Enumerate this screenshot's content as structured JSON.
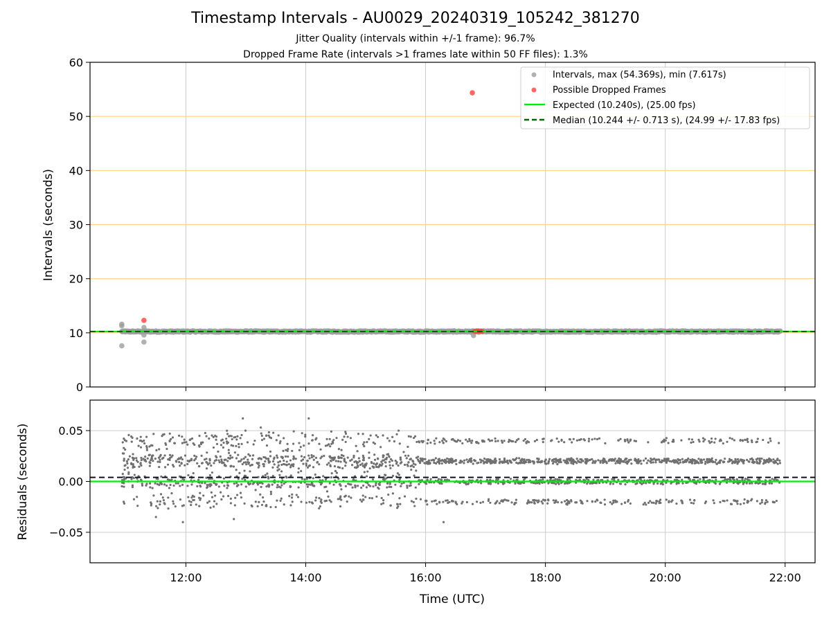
{
  "title": "Timestamp Intervals - AU0029_20240319_105242_381270",
  "subtitle_lines": [
    "Jitter Quality (intervals within +/-1 frame): 96.7%",
    "Dropped Frame Rate (intervals >1 frames late within 50 FF files): 1.3%"
  ],
  "colors": {
    "intervals": "#9e9e9e",
    "dropped": "#ff4040",
    "expected": "#00ee00",
    "median": "#006400",
    "residuals": "#707070",
    "hgrid_top": "#ffd27f",
    "grid": "#cccccc"
  },
  "chart_data": [
    {
      "type": "scatter",
      "panel": "top",
      "xlabel": "",
      "ylabel": "Intervals (seconds)",
      "xlim_hours": [
        10.4,
        22.5
      ],
      "ylim": [
        0,
        60
      ],
      "yticks": [
        0,
        10,
        20,
        30,
        40,
        50,
        60
      ],
      "xticks": [
        "12:00",
        "14:00",
        "16:00",
        "18:00",
        "20:00",
        "22:00"
      ],
      "xtick_hours": [
        12,
        14,
        16,
        18,
        20,
        22
      ],
      "grid": true,
      "legend_position": "top-right",
      "legend": [
        "Intervals, max (54.369s), min (7.617s)",
        "Possible Dropped Frames",
        "Expected (10.240s), (25.00 fps)",
        "Median (10.244 +/- 0.713 s), (24.99 +/- 17.83 fps)"
      ],
      "intervals_band": {
        "x_start_hour": 10.93,
        "x_end_hour": 21.92,
        "value": 10.24
      },
      "interval_outliers": [
        {
          "x_hour": 10.93,
          "y": 11.6
        },
        {
          "x_hour": 10.93,
          "y": 11.3
        },
        {
          "x_hour": 10.93,
          "y": 7.6
        },
        {
          "x_hour": 11.3,
          "y": 11.0
        },
        {
          "x_hour": 11.3,
          "y": 9.6
        },
        {
          "x_hour": 11.3,
          "y": 8.3
        },
        {
          "x_hour": 16.8,
          "y": 9.5
        }
      ],
      "dropped_frames": [
        {
          "x_hour": 11.3,
          "y": 12.3
        },
        {
          "x_hour": 16.78,
          "y": 54.369
        },
        {
          "x_hour": 16.82,
          "y": 10.3
        },
        {
          "x_hour": 16.85,
          "y": 10.3
        },
        {
          "x_hour": 16.88,
          "y": 10.3
        },
        {
          "x_hour": 16.91,
          "y": 10.3
        },
        {
          "x_hour": 16.94,
          "y": 10.3
        }
      ],
      "expected_value": 10.24,
      "median_value": 10.244
    },
    {
      "type": "scatter",
      "panel": "bottom",
      "xlabel": "Time (UTC)",
      "ylabel": "Residuals (seconds)",
      "xlim_hours": [
        10.4,
        22.5
      ],
      "ylim": [
        -0.08,
        0.08
      ],
      "yticks": [
        -0.05,
        0.0,
        0.05
      ],
      "ytick_labels": [
        "−0.05",
        "0.00",
        "0.05"
      ],
      "xticks": [
        "12:00",
        "14:00",
        "16:00",
        "18:00",
        "20:00",
        "22:00"
      ],
      "xtick_hours": [
        12,
        14,
        16,
        18,
        20,
        22
      ],
      "grid": true,
      "residual_range_hours": [
        10.93,
        21.92
      ],
      "residual_levels": [
        -0.02,
        0.0,
        0.02,
        0.04
      ],
      "residual_outliers": [
        {
          "x_hour": 12.95,
          "y": 0.062
        },
        {
          "x_hour": 14.05,
          "y": 0.062
        },
        {
          "x_hour": 13.25,
          "y": 0.053
        },
        {
          "x_hour": 15.55,
          "y": 0.05
        },
        {
          "x_hour": 11.95,
          "y": -0.04
        },
        {
          "x_hour": 16.3,
          "y": -0.04
        },
        {
          "x_hour": 12.8,
          "y": -0.037
        },
        {
          "x_hour": 11.5,
          "y": -0.035
        }
      ],
      "expected_value": 0.0,
      "median_value": 0.004
    }
  ]
}
